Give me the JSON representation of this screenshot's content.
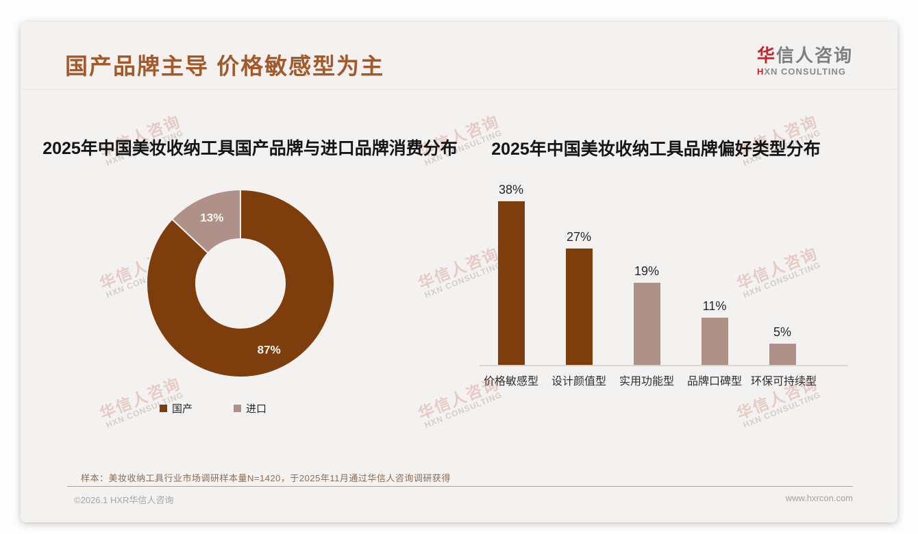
{
  "page_title": "国产品牌主导 价格敏感型为主",
  "logo": {
    "brand_first": "华",
    "brand_rest": "信人咨询",
    "subtitle_first": "H",
    "subtitle_rest": "XN CONSULTING"
  },
  "watermark": {
    "cn": "华信人咨询",
    "en": "HXN CONSULTING"
  },
  "colors": {
    "brand_brown": "#7e3d0c",
    "brand_mauve": "#af9189",
    "title_orange": "#a4592a",
    "logo_red": "#c0272d"
  },
  "chart_data": [
    {
      "type": "pie",
      "subtype": "donut",
      "title": "2025年中国美妆收纳工具国产品牌与进口品牌消费分布",
      "labels": [
        "国产",
        "进口"
      ],
      "values": [
        87,
        13
      ],
      "unit": "%",
      "colors": [
        "#7e3d0c",
        "#af9189"
      ],
      "data_labels": [
        "87%",
        "13%"
      ],
      "legend_position": "bottom"
    },
    {
      "type": "bar",
      "title": "2025年中国美妆收纳工具品牌偏好类型分布",
      "categories": [
        "价格敏感型",
        "设计颜值型",
        "实用功能型",
        "品牌口碑型",
        "环保可持续型"
      ],
      "values": [
        38,
        27,
        19,
        11,
        5
      ],
      "unit": "%",
      "colors": [
        "#7e3d0c",
        "#7e3d0c",
        "#af9189",
        "#af9189",
        "#af9189"
      ],
      "ylim": [
        0,
        40
      ],
      "grid": false,
      "data_labels": true,
      "xlabel": "",
      "ylabel": ""
    }
  ],
  "footnote": "样本：美妆收纳工具行业市场调研样本量N=1420，于2025年11月通过华信人咨询调研获得",
  "footer": {
    "left": "©2026.1 HXR华信人咨询",
    "right": "www.hxrcon.com"
  }
}
